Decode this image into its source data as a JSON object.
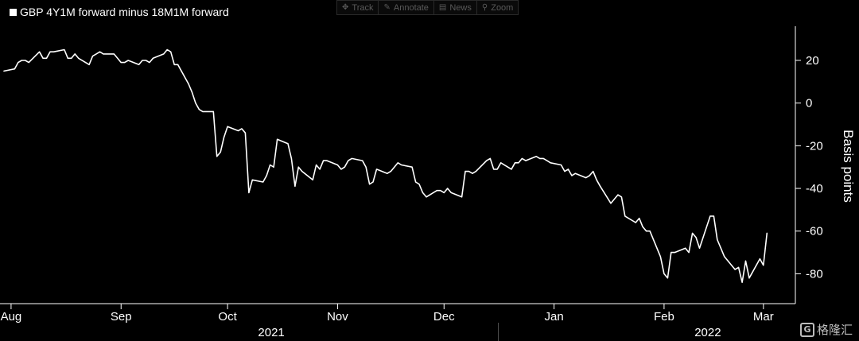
{
  "legend": {
    "label": "GBP 4Y1M forward minus 18M1M forward"
  },
  "toolbar": {
    "items": [
      {
        "label": "Track",
        "icon": "crosshair-icon",
        "glyph": "✥"
      },
      {
        "label": "Annotate",
        "icon": "pencil-icon",
        "glyph": "✎"
      },
      {
        "label": "News",
        "icon": "news-icon",
        "glyph": "▤"
      },
      {
        "label": "Zoom",
        "icon": "zoom-icon",
        "glyph": "⚲"
      }
    ]
  },
  "watermark": {
    "text": "格隆汇",
    "logo_text": "G"
  },
  "colors": {
    "background": "#000000",
    "line": "#ffffff",
    "axis": "#ffffff",
    "toolbar_text": "#5a5a5a"
  },
  "chart_data": {
    "type": "line",
    "title": "",
    "xlabel": "",
    "ylabel": "Basis points",
    "ylim": [
      -94,
      36
    ],
    "yticks": [
      20,
      0,
      -20,
      -40,
      -60,
      -80
    ],
    "y_axis_side": "right",
    "grid": false,
    "legend_position": "top-left",
    "x_axis_start": "2021-07-30",
    "x_axis_end": "2022-03-10",
    "month_labels": [
      {
        "label": "Aug",
        "date": "2021-08-01"
      },
      {
        "label": "Sep",
        "date": "2021-09-01"
      },
      {
        "label": "Oct",
        "date": "2021-10-01"
      },
      {
        "label": "Nov",
        "date": "2021-11-01"
      },
      {
        "label": "Dec",
        "date": "2021-12-01"
      },
      {
        "label": "Jan",
        "date": "2022-01-01"
      },
      {
        "label": "Feb",
        "date": "2022-02-01"
      },
      {
        "label": "Mar",
        "date": "2022-03-01"
      }
    ],
    "year_labels": [
      {
        "label": "2021",
        "date": "2021-10-01"
      },
      {
        "label": "2022",
        "date": "2022-02-01"
      }
    ],
    "year_divider_date": "2022-01-01",
    "series": [
      {
        "name": "GBP 4Y1M forward minus 18M1M forward",
        "points": [
          [
            "2021-07-30",
            15
          ],
          [
            "2021-08-02",
            16
          ],
          [
            "2021-08-03",
            19
          ],
          [
            "2021-08-04",
            20
          ],
          [
            "2021-08-05",
            20
          ],
          [
            "2021-08-06",
            19
          ],
          [
            "2021-08-09",
            24
          ],
          [
            "2021-08-10",
            21
          ],
          [
            "2021-08-11",
            21
          ],
          [
            "2021-08-12",
            24
          ],
          [
            "2021-08-13",
            24
          ],
          [
            "2021-08-16",
            25
          ],
          [
            "2021-08-17",
            21
          ],
          [
            "2021-08-18",
            21
          ],
          [
            "2021-08-19",
            23
          ],
          [
            "2021-08-20",
            21
          ],
          [
            "2021-08-23",
            18
          ],
          [
            "2021-08-24",
            22
          ],
          [
            "2021-08-25",
            23
          ],
          [
            "2021-08-26",
            24
          ],
          [
            "2021-08-27",
            23
          ],
          [
            "2021-08-30",
            23
          ],
          [
            "2021-08-31",
            21
          ],
          [
            "2021-09-01",
            19
          ],
          [
            "2021-09-02",
            19
          ],
          [
            "2021-09-03",
            20
          ],
          [
            "2021-09-06",
            18
          ],
          [
            "2021-09-07",
            20
          ],
          [
            "2021-09-08",
            20
          ],
          [
            "2021-09-09",
            19
          ],
          [
            "2021-09-10",
            21
          ],
          [
            "2021-09-13",
            23
          ],
          [
            "2021-09-14",
            25
          ],
          [
            "2021-09-15",
            24
          ],
          [
            "2021-09-16",
            18
          ],
          [
            "2021-09-17",
            18
          ],
          [
            "2021-09-20",
            9
          ],
          [
            "2021-09-21",
            5
          ],
          [
            "2021-09-22",
            0
          ],
          [
            "2021-09-23",
            -3
          ],
          [
            "2021-09-24",
            -4
          ],
          [
            "2021-09-27",
            -4
          ],
          [
            "2021-09-28",
            -25
          ],
          [
            "2021-09-29",
            -23
          ],
          [
            "2021-09-30",
            -16
          ],
          [
            "2021-10-01",
            -11
          ],
          [
            "2021-10-04",
            -13
          ],
          [
            "2021-10-05",
            -12
          ],
          [
            "2021-10-06",
            -14
          ],
          [
            "2021-10-07",
            -42
          ],
          [
            "2021-10-08",
            -36
          ],
          [
            "2021-10-11",
            -37
          ],
          [
            "2021-10-12",
            -34
          ],
          [
            "2021-10-13",
            -29
          ],
          [
            "2021-10-14",
            -30
          ],
          [
            "2021-10-15",
            -17
          ],
          [
            "2021-10-18",
            -19
          ],
          [
            "2021-10-19",
            -26
          ],
          [
            "2021-10-20",
            -39
          ],
          [
            "2021-10-21",
            -30
          ],
          [
            "2021-10-22",
            -32
          ],
          [
            "2021-10-25",
            -36
          ],
          [
            "2021-10-26",
            -29
          ],
          [
            "2021-10-27",
            -31
          ],
          [
            "2021-10-28",
            -27
          ],
          [
            "2021-10-29",
            -27
          ],
          [
            "2021-11-01",
            -29
          ],
          [
            "2021-11-02",
            -31
          ],
          [
            "2021-11-03",
            -30
          ],
          [
            "2021-11-04",
            -27
          ],
          [
            "2021-11-05",
            -26
          ],
          [
            "2021-11-08",
            -27
          ],
          [
            "2021-11-09",
            -30
          ],
          [
            "2021-11-10",
            -38
          ],
          [
            "2021-11-11",
            -37
          ],
          [
            "2021-11-12",
            -31
          ],
          [
            "2021-11-15",
            -33
          ],
          [
            "2021-11-16",
            -32
          ],
          [
            "2021-11-17",
            -30
          ],
          [
            "2021-11-18",
            -28
          ],
          [
            "2021-11-19",
            -29
          ],
          [
            "2021-11-22",
            -30
          ],
          [
            "2021-11-23",
            -37
          ],
          [
            "2021-11-24",
            -38
          ],
          [
            "2021-11-25",
            -42
          ],
          [
            "2021-11-26",
            -44
          ],
          [
            "2021-11-29",
            -41
          ],
          [
            "2021-11-30",
            -41
          ],
          [
            "2021-12-01",
            -42
          ],
          [
            "2021-12-02",
            -40
          ],
          [
            "2021-12-03",
            -42
          ],
          [
            "2021-12-06",
            -44
          ],
          [
            "2021-12-07",
            -32
          ],
          [
            "2021-12-08",
            -32
          ],
          [
            "2021-12-09",
            -33
          ],
          [
            "2021-12-10",
            -32
          ],
          [
            "2021-12-13",
            -27
          ],
          [
            "2021-12-14",
            -26
          ],
          [
            "2021-12-15",
            -31
          ],
          [
            "2021-12-16",
            -31
          ],
          [
            "2021-12-17",
            -28
          ],
          [
            "2021-12-20",
            -31
          ],
          [
            "2021-12-21",
            -28
          ],
          [
            "2021-12-22",
            -28
          ],
          [
            "2021-12-23",
            -26
          ],
          [
            "2021-12-24",
            -27
          ],
          [
            "2021-12-27",
            -25
          ],
          [
            "2021-12-28",
            -26
          ],
          [
            "2021-12-29",
            -26
          ],
          [
            "2021-12-30",
            -27
          ],
          [
            "2021-12-31",
            -28
          ],
          [
            "2022-01-03",
            -29
          ],
          [
            "2022-01-04",
            -32
          ],
          [
            "2022-01-05",
            -31
          ],
          [
            "2022-01-06",
            -34
          ],
          [
            "2022-01-07",
            -33
          ],
          [
            "2022-01-10",
            -35
          ],
          [
            "2022-01-11",
            -34
          ],
          [
            "2022-01-12",
            -32
          ],
          [
            "2022-01-13",
            -36
          ],
          [
            "2022-01-14",
            -39
          ],
          [
            "2022-01-17",
            -47
          ],
          [
            "2022-01-18",
            -45
          ],
          [
            "2022-01-19",
            -43
          ],
          [
            "2022-01-20",
            -44
          ],
          [
            "2022-01-21",
            -53
          ],
          [
            "2022-01-24",
            -56
          ],
          [
            "2022-01-25",
            -54
          ],
          [
            "2022-01-26",
            -58
          ],
          [
            "2022-01-27",
            -60
          ],
          [
            "2022-01-28",
            -60
          ],
          [
            "2022-01-31",
            -72
          ],
          [
            "2022-02-01",
            -80
          ],
          [
            "2022-02-02",
            -82
          ],
          [
            "2022-02-03",
            -70
          ],
          [
            "2022-02-04",
            -70
          ],
          [
            "2022-02-07",
            -68
          ],
          [
            "2022-02-08",
            -70
          ],
          [
            "2022-02-09",
            -61
          ],
          [
            "2022-02-10",
            -63
          ],
          [
            "2022-02-11",
            -68
          ],
          [
            "2022-02-14",
            -53
          ],
          [
            "2022-02-15",
            -53
          ],
          [
            "2022-02-16",
            -64
          ],
          [
            "2022-02-17",
            -68
          ],
          [
            "2022-02-18",
            -72
          ],
          [
            "2022-02-21",
            -78
          ],
          [
            "2022-02-22",
            -77
          ],
          [
            "2022-02-23",
            -84
          ],
          [
            "2022-02-24",
            -74
          ],
          [
            "2022-02-25",
            -82
          ],
          [
            "2022-02-28",
            -73
          ],
          [
            "2022-03-01",
            -76
          ],
          [
            "2022-03-02",
            -61
          ]
        ]
      }
    ]
  }
}
